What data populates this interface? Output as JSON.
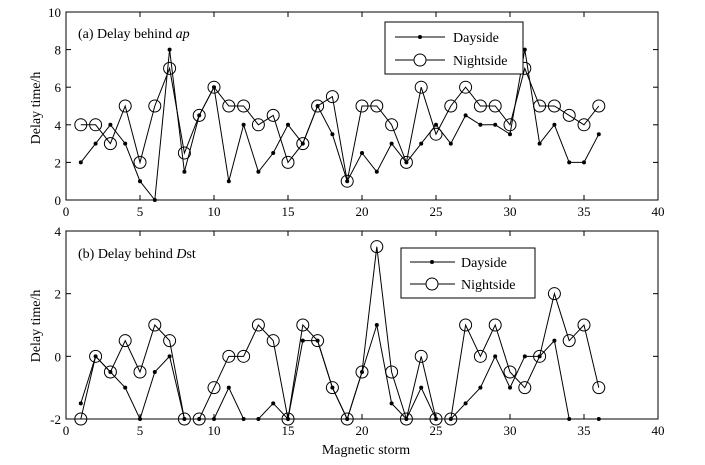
{
  "x_axis_label": "Magnetic storm",
  "chart_data": [
    {
      "type": "line",
      "title": "(a) Delay behind ",
      "title_italic": "ap",
      "title_suffix": "",
      "xlabel": "",
      "ylabel": "Delay time/h",
      "xlim": [
        0,
        40
      ],
      "ylim": [
        0,
        10
      ],
      "xticks": [
        0,
        5,
        10,
        15,
        20,
        25,
        30,
        35,
        40
      ],
      "yticks": [
        0,
        2,
        4,
        6,
        8,
        10
      ],
      "legend_position": "top-right",
      "x": [
        1,
        2,
        3,
        4,
        5,
        6,
        7,
        8,
        9,
        10,
        11,
        12,
        13,
        14,
        15,
        16,
        17,
        18,
        19,
        20,
        21,
        22,
        23,
        24,
        25,
        26,
        27,
        28,
        29,
        30,
        31,
        32,
        33,
        34,
        35,
        36
      ],
      "series": [
        {
          "name": "Dayside",
          "marker": "dot",
          "values": [
            2,
            3,
            4,
            3,
            1,
            0,
            8,
            1.5,
            4.5,
            6,
            1,
            4,
            1.5,
            2.5,
            4,
            3,
            5,
            3.5,
            1,
            2.5,
            1.5,
            3,
            2,
            3,
            4,
            3,
            4.5,
            4,
            4,
            3.5,
            8,
            3,
            4,
            2,
            2,
            3.5
          ]
        },
        {
          "name": "Nightside",
          "marker": "circle",
          "values": [
            4,
            4,
            3,
            5,
            2,
            5,
            7,
            2.5,
            4.5,
            6,
            5,
            5,
            4,
            4.5,
            2,
            3,
            5,
            5.5,
            1,
            5,
            5,
            4,
            2,
            6,
            3.5,
            5,
            6,
            5,
            5,
            4,
            7,
            5,
            5,
            4.5,
            4,
            5
          ]
        }
      ]
    },
    {
      "type": "line",
      "title": "(b) Delay behind ",
      "title_italic": "D",
      "title_suffix": "st",
      "xlabel": "Magnetic storm",
      "ylabel": "Delay time/h",
      "xlim": [
        0,
        40
      ],
      "ylim": [
        -2,
        4
      ],
      "xticks": [
        0,
        5,
        10,
        15,
        20,
        25,
        30,
        35,
        40
      ],
      "yticks": [
        -2,
        0,
        2,
        4
      ],
      "legend_position": "top-right",
      "x": [
        1,
        2,
        3,
        4,
        5,
        6,
        7,
        8,
        9,
        10,
        11,
        12,
        13,
        14,
        15,
        16,
        17,
        18,
        19,
        20,
        21,
        22,
        23,
        24,
        25,
        26,
        27,
        28,
        29,
        30,
        31,
        32,
        33,
        34,
        35,
        36
      ],
      "series": [
        {
          "name": "Dayside",
          "marker": "dot",
          "values": [
            -1.5,
            0,
            -0.5,
            -1,
            -2,
            -0.5,
            0,
            -2,
            -2,
            -2,
            -1,
            -2,
            -2,
            -1.5,
            -2,
            0.5,
            0.5,
            -1,
            -2,
            -0.5,
            1,
            -1.5,
            -2,
            -1,
            -2,
            -2,
            -1.5,
            -1,
            0,
            -1,
            0,
            0,
            0.5,
            -2,
            null,
            -2
          ]
        },
        {
          "name": "Nightside",
          "marker": "circle",
          "values": [
            -2,
            0,
            -0.5,
            0.5,
            -0.5,
            1,
            0.5,
            -2,
            -2,
            -1,
            0,
            0,
            1,
            0.5,
            -2,
            1,
            0.5,
            -1,
            -2,
            -0.5,
            3.5,
            -0.5,
            -2,
            0,
            -2,
            -2,
            1,
            0,
            1,
            -0.5,
            -1,
            0,
            2,
            0.5,
            1,
            -1
          ]
        }
      ]
    }
  ]
}
